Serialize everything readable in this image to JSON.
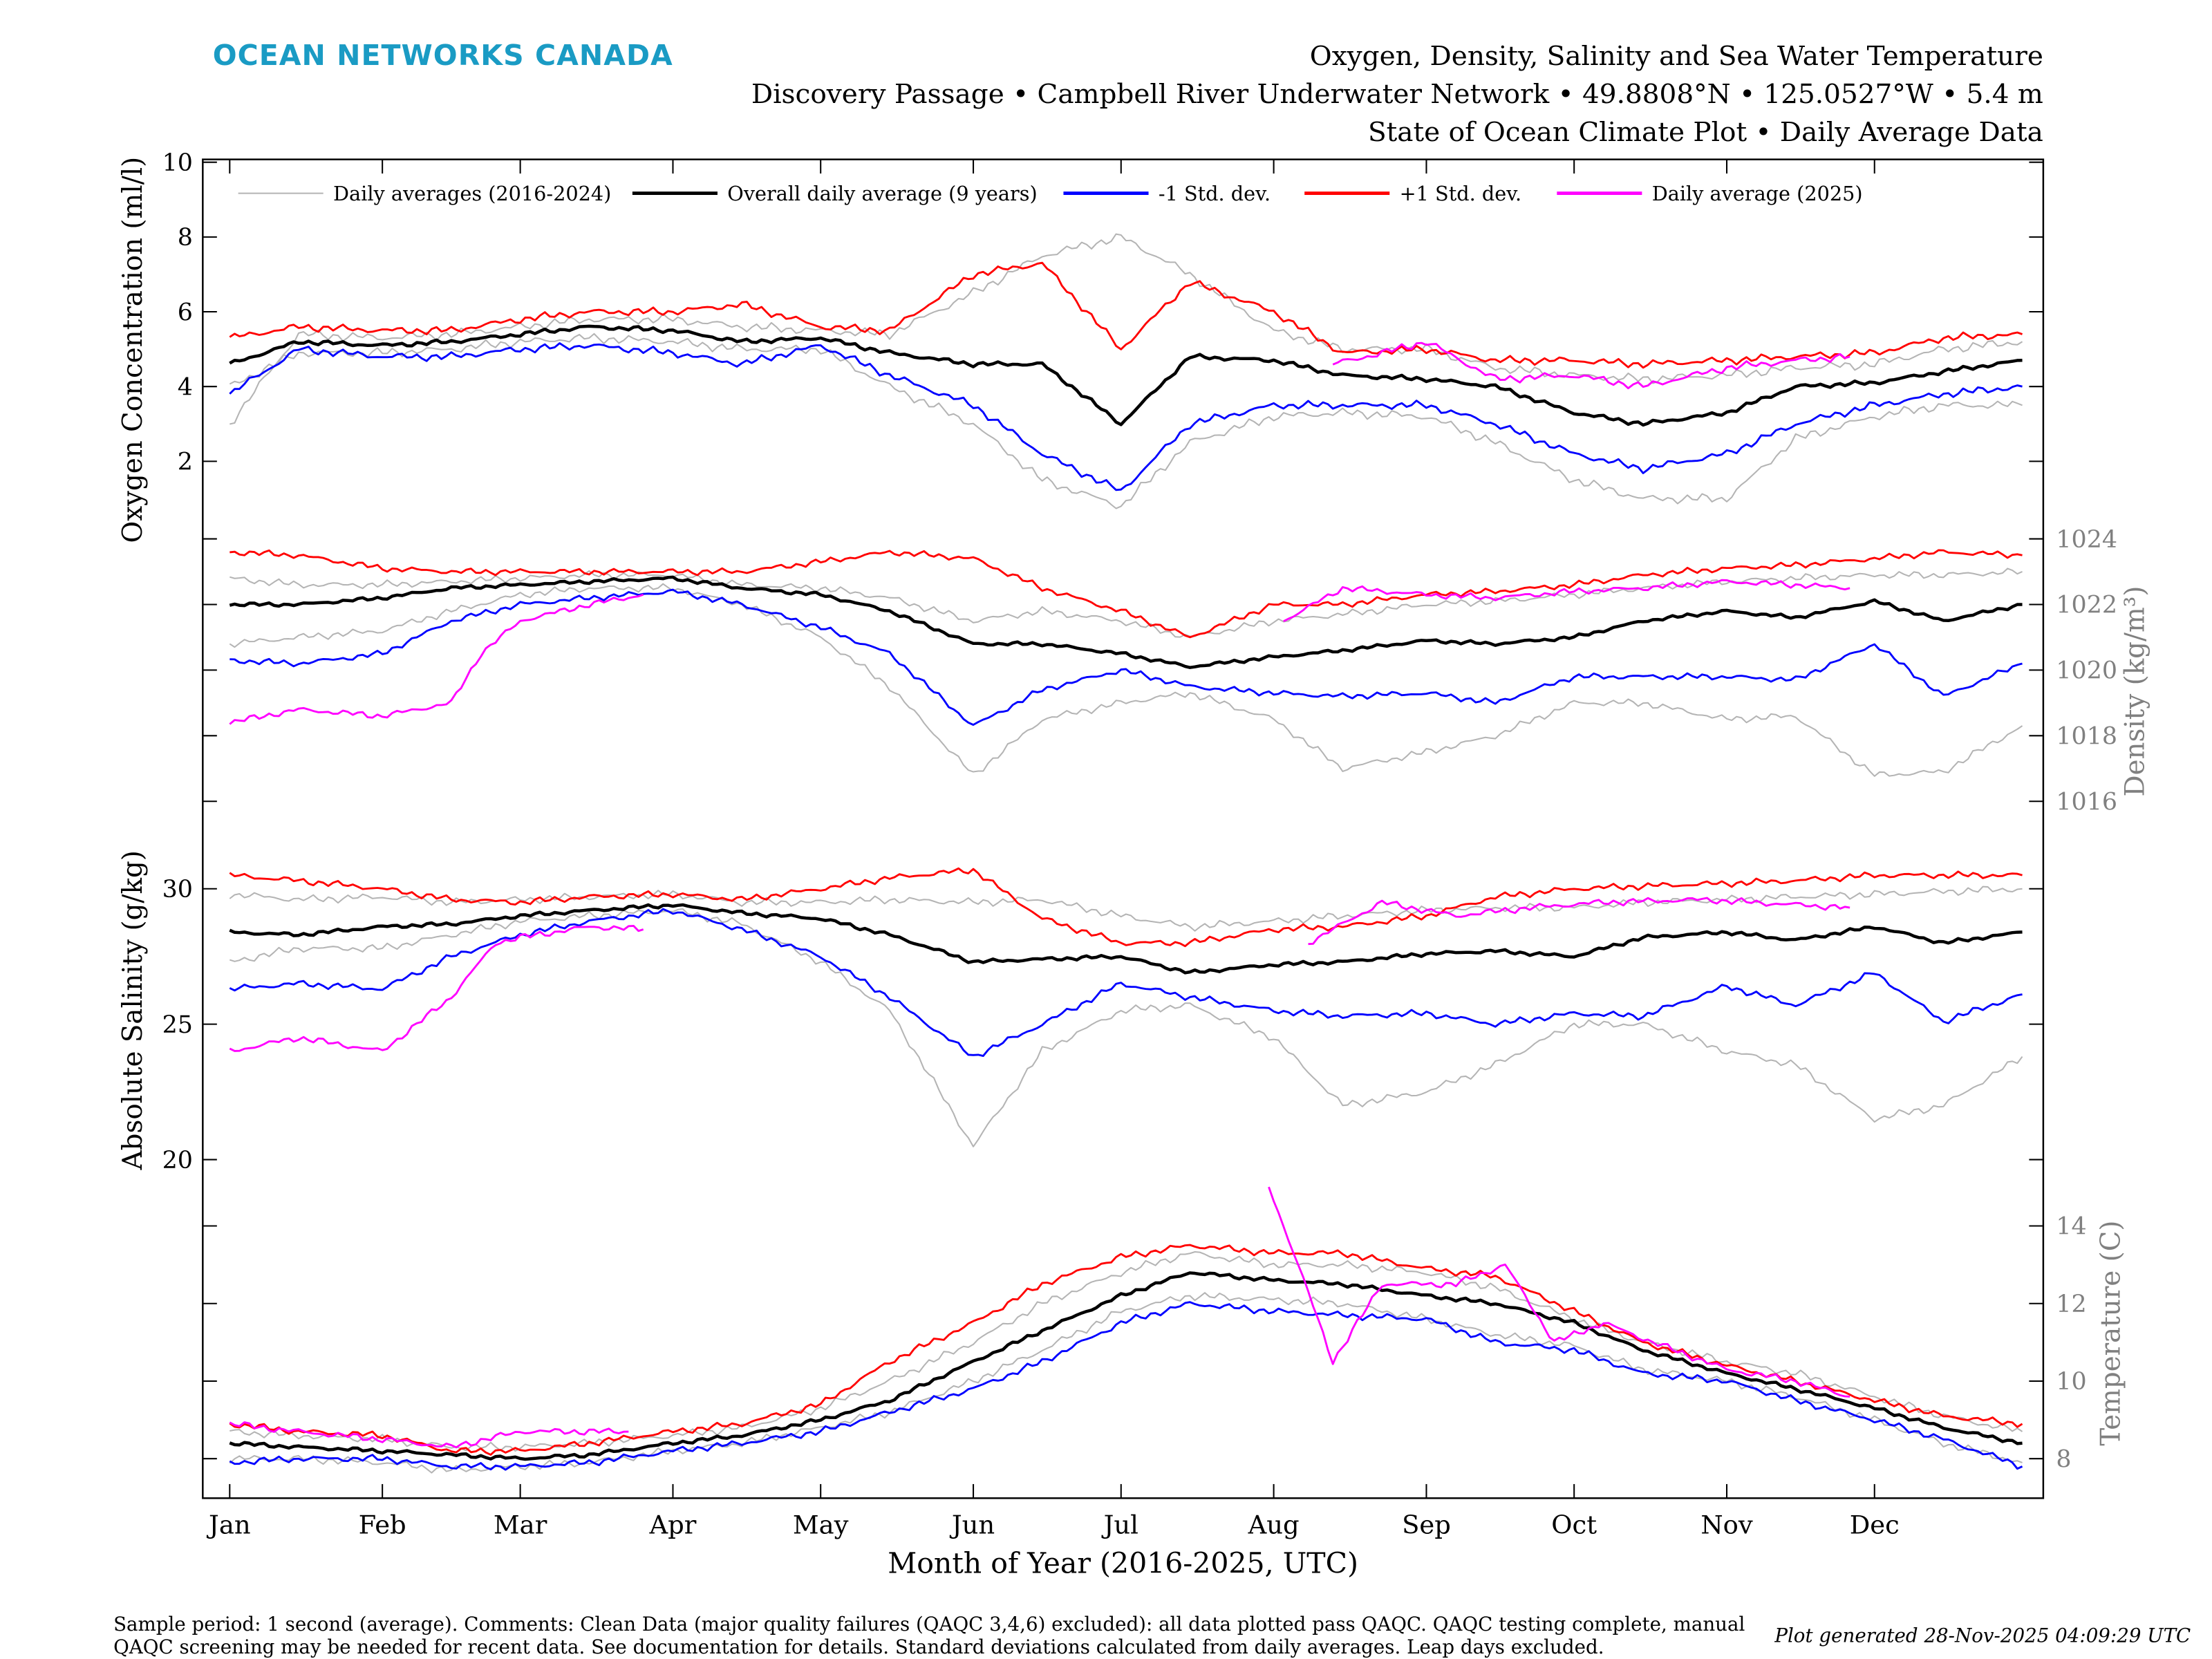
{
  "header": {
    "logo": "OCEAN NETWORKS CANADA",
    "title": "Oxygen, Density, Salinity and Sea Water Temperature",
    "subtitle": "Discovery Passage • Campbell River Underwater Network • 49.8808°N • 125.0527°W • 5.4 m",
    "subtitle2": "State of Ocean Climate Plot • Daily Average Data"
  },
  "footer": {
    "comment_line1": "Sample period: 1 second (average). Comments: Clean Data (major quality failures (QAQC 3,4,6) excluded): all data plotted pass QAQC. QAQC testing complete, manual",
    "comment_line2": "QAQC screening may be needed for recent data. See documentation for details. Standard deviations calculated from daily averages. Leap days excluded.",
    "generated": "Plot generated 28-Nov-2025 04:09:29 UTC"
  },
  "colors": {
    "logo": "#1a9bc4",
    "gray": "#b4b4b4",
    "mean": "#000000",
    "minus": "#0000ff",
    "plus": "#ff0000",
    "current": "#ff00ff",
    "axis2": "#808080"
  },
  "chart_data": {
    "type": "line",
    "xlabel": "Month of Year (2016-2025, UTC)",
    "x_ticks": [
      "Jan",
      "Feb",
      "Mar",
      "Apr",
      "May",
      "Jun",
      "Jul",
      "Aug",
      "Sep",
      "Oct",
      "Nov",
      "Dec"
    ],
    "x_tick_days": [
      1,
      32,
      60,
      91,
      121,
      152,
      182,
      213,
      244,
      274,
      305,
      335
    ],
    "xlim_days": [
      1,
      365
    ],
    "legend": {
      "placement": "top",
      "entries": [
        {
          "label": "Daily averages (2016-2024)",
          "key": "gray"
        },
        {
          "label": "Overall daily average (9 years)",
          "key": "mean"
        },
        {
          "label": "-1 Std. dev.",
          "key": "minus"
        },
        {
          "label": "+1 Std. dev.",
          "key": "plus"
        },
        {
          "label": "Daily average (2025)",
          "key": "current"
        }
      ]
    },
    "x_days": [
      1,
      15,
      32,
      46,
      60,
      74,
      91,
      105,
      121,
      135,
      152,
      166,
      182,
      196,
      213,
      227,
      244,
      258,
      274,
      288,
      305,
      319,
      335,
      349,
      365
    ],
    "panels": [
      {
        "name": "oxygen",
        "ylabel": "Oxygen Concentration (ml/l)",
        "axis_side": "left",
        "ylim": [
          0,
          10
        ],
        "y_ticks": [
          2,
          4,
          6,
          8,
          10
        ],
        "mean": [
          4.6,
          5.2,
          5.1,
          5.2,
          5.4,
          5.6,
          5.5,
          5.2,
          5.3,
          4.9,
          4.6,
          4.6,
          3.0,
          4.8,
          4.7,
          4.3,
          4.2,
          4.0,
          3.3,
          3.0,
          3.3,
          4.0,
          4.1,
          4.4,
          4.7
        ],
        "plus": [
          5.3,
          5.6,
          5.5,
          5.5,
          5.8,
          6.0,
          6.0,
          6.2,
          5.6,
          5.5,
          7.0,
          7.3,
          5.0,
          6.8,
          6.0,
          4.9,
          5.0,
          4.7,
          4.7,
          4.6,
          4.7,
          4.8,
          4.9,
          5.3,
          5.4
        ],
        "minus": [
          3.8,
          5.0,
          4.8,
          4.8,
          5.0,
          5.1,
          4.9,
          4.6,
          5.1,
          4.3,
          3.5,
          2.2,
          1.2,
          3.0,
          3.5,
          3.5,
          3.5,
          3.0,
          2.2,
          1.8,
          2.2,
          3.0,
          3.5,
          3.8,
          4.0
        ],
        "gray": [
          [
            3.0,
            5.4,
            5.3,
            5.4,
            5.6,
            5.8,
            5.8,
            5.6,
            5.5,
            5.4,
            6.5,
            7.5,
            8.0,
            7.0,
            5.5,
            5.0,
            5.0,
            4.5,
            4.3,
            4.2,
            4.3,
            4.5,
            4.6,
            5.0,
            5.2
          ],
          [
            4.0,
            4.9,
            4.9,
            5.0,
            5.2,
            5.3,
            5.2,
            5.0,
            5.0,
            4.0,
            3.0,
            1.5,
            0.8,
            2.5,
            3.2,
            3.3,
            3.2,
            2.5,
            1.5,
            1.0,
            1.0,
            2.6,
            3.2,
            3.5,
            3.5
          ]
        ],
        "current": {
          "x": [
            225,
            235,
            244,
            258,
            274,
            288,
            305,
            319,
            330
          ],
          "y": [
            4.6,
            4.9,
            5.2,
            4.2,
            4.3,
            4.0,
            4.5,
            4.7,
            4.8
          ]
        }
      },
      {
        "name": "density",
        "ylabel": "Density (kg/m³)",
        "axis_side": "right",
        "ylim": [
          1015.4,
          1024.4
        ],
        "y_ticks": [
          1016,
          1018,
          1020,
          1022,
          1024
        ],
        "mean": [
          1022.0,
          1022.0,
          1022.2,
          1022.5,
          1022.6,
          1022.7,
          1022.8,
          1022.5,
          1022.3,
          1021.8,
          1020.8,
          1020.8,
          1020.5,
          1020.1,
          1020.4,
          1020.6,
          1020.9,
          1020.8,
          1021.0,
          1021.5,
          1021.8,
          1021.6,
          1022.1,
          1021.5,
          1022.0
        ],
        "plus": [
          1023.6,
          1023.5,
          1023.1,
          1023.0,
          1023.0,
          1023.0,
          1023.0,
          1023.0,
          1023.3,
          1023.6,
          1023.4,
          1022.5,
          1021.8,
          1021.0,
          1022.0,
          1022.0,
          1022.3,
          1022.4,
          1022.6,
          1022.9,
          1023.1,
          1023.2,
          1023.4,
          1023.6,
          1023.5
        ],
        "minus": [
          1020.3,
          1020.2,
          1020.5,
          1021.5,
          1022.0,
          1022.2,
          1022.4,
          1022.0,
          1021.3,
          1020.5,
          1018.3,
          1019.4,
          1020.0,
          1019.5,
          1019.3,
          1019.2,
          1019.3,
          1019.0,
          1019.8,
          1019.8,
          1019.8,
          1019.7,
          1020.8,
          1019.2,
          1020.2
        ],
        "gray": [
          [
            1022.8,
            1022.6,
            1022.6,
            1022.7,
            1022.8,
            1022.9,
            1022.9,
            1022.6,
            1022.5,
            1022.2,
            1021.5,
            1021.8,
            1021.5,
            1021.0,
            1021.5,
            1021.7,
            1022.0,
            1022.1,
            1022.3,
            1022.5,
            1022.7,
            1022.8,
            1022.9,
            1022.9,
            1023.0
          ],
          [
            1020.8,
            1021.0,
            1021.2,
            1021.8,
            1022.3,
            1022.5,
            1022.5,
            1022.0,
            1021.0,
            1019.5,
            1016.8,
            1018.5,
            1019.0,
            1019.3,
            1018.5,
            1017.0,
            1017.5,
            1018.0,
            1019.0,
            1019.0,
            1018.5,
            1018.6,
            1016.8,
            1016.9,
            1018.3
          ]
        ],
        "current": {
          "x": [
            1,
            15,
            32,
            46,
            52,
            60,
            74,
            85,
            null,
            215,
            227,
            244,
            258,
            274,
            288,
            305,
            319,
            330
          ],
          "y": [
            1018.4,
            1018.8,
            1018.6,
            1019.0,
            1020.5,
            1021.5,
            1022.0,
            1022.3,
            null,
            1021.5,
            1022.5,
            1022.3,
            1022.2,
            1022.4,
            1022.5,
            1022.7,
            1022.6,
            1022.5
          ]
        }
      },
      {
        "name": "salinity",
        "ylabel": "Absolute Salinity (g/kg)",
        "axis_side": "left",
        "ylim": [
          19.5,
          31.2
        ],
        "y_ticks": [
          20,
          25,
          30
        ],
        "mean": [
          28.4,
          28.3,
          28.6,
          28.7,
          29.0,
          29.2,
          29.4,
          29.1,
          28.9,
          28.3,
          27.3,
          27.4,
          27.5,
          26.9,
          27.2,
          27.3,
          27.6,
          27.7,
          27.5,
          28.2,
          28.4,
          28.1,
          28.6,
          28.0,
          28.4
        ],
        "plus": [
          30.5,
          30.3,
          30.0,
          29.6,
          29.5,
          29.7,
          29.8,
          29.6,
          30.0,
          30.4,
          30.7,
          28.9,
          28.0,
          28.0,
          28.5,
          28.6,
          29.0,
          29.7,
          30.0,
          30.1,
          30.2,
          30.3,
          30.5,
          30.5,
          30.5
        ],
        "minus": [
          26.3,
          26.5,
          26.3,
          27.5,
          28.3,
          28.8,
          29.2,
          28.5,
          27.5,
          26.0,
          23.8,
          25.0,
          26.5,
          26.0,
          25.5,
          25.3,
          25.4,
          25.0,
          25.4,
          25.3,
          26.4,
          25.7,
          26.9,
          25.1,
          26.1
        ],
        "gray": [
          [
            29.8,
            29.6,
            29.7,
            29.5,
            29.6,
            29.7,
            29.8,
            29.5,
            29.5,
            29.6,
            29.5,
            29.6,
            29.0,
            28.6,
            28.8,
            29.0,
            29.2,
            29.3,
            29.3,
            29.5,
            29.6,
            29.7,
            29.8,
            29.9,
            30.0
          ],
          [
            27.3,
            27.8,
            27.8,
            28.3,
            28.8,
            29.0,
            29.2,
            28.7,
            27.3,
            25.5,
            20.5,
            24.0,
            25.5,
            25.7,
            24.5,
            22.0,
            22.5,
            23.5,
            25.0,
            25.0,
            24.0,
            23.5,
            21.5,
            22.0,
            23.8
          ]
        ],
        "current": {
          "x": [
            1,
            15,
            32,
            46,
            55,
            60,
            74,
            85,
            null,
            220,
            235,
            250,
            265,
            280,
            300,
            320,
            330
          ],
          "y": [
            24.0,
            24.5,
            24.0,
            26.0,
            28.0,
            28.2,
            28.6,
            28.5,
            null,
            28.0,
            29.5,
            29.0,
            29.3,
            29.5,
            29.6,
            29.4,
            29.3
          ]
        }
      },
      {
        "name": "temperature",
        "ylabel": "Temperature (C)",
        "axis_side": "right",
        "ylim": [
          7.3,
          15.7
        ],
        "y_ticks": [
          8,
          10,
          12,
          14
        ],
        "mean": [
          8.4,
          8.3,
          8.2,
          8.1,
          8.0,
          8.1,
          8.4,
          8.6,
          9.0,
          9.5,
          10.5,
          11.3,
          12.2,
          12.8,
          12.6,
          12.5,
          12.2,
          12.0,
          11.5,
          10.8,
          10.2,
          9.8,
          9.3,
          8.8,
          8.4
        ],
        "plus": [
          8.9,
          8.7,
          8.6,
          8.2,
          8.2,
          8.4,
          8.7,
          8.9,
          9.4,
          10.5,
          11.5,
          12.5,
          13.2,
          13.5,
          13.3,
          13.3,
          12.9,
          12.7,
          11.8,
          11.0,
          10.4,
          10.0,
          9.5,
          9.1,
          8.9
        ],
        "minus": [
          7.9,
          8.0,
          8.0,
          7.8,
          7.8,
          7.9,
          8.2,
          8.4,
          8.7,
          9.2,
          9.8,
          10.5,
          11.5,
          12.0,
          11.8,
          11.7,
          11.6,
          11.0,
          10.8,
          10.2,
          10.0,
          9.5,
          9.0,
          8.5,
          7.8
        ],
        "gray": [
          [
            8.7,
            8.6,
            8.5,
            8.3,
            8.3,
            8.4,
            8.6,
            8.8,
            9.3,
            10.0,
            11.0,
            12.0,
            12.8,
            13.3,
            13.0,
            13.0,
            12.8,
            12.4,
            11.6,
            11.0,
            10.5,
            10.2,
            9.6,
            9.1,
            8.7
          ],
          [
            8.0,
            8.0,
            7.9,
            7.7,
            7.8,
            7.9,
            8.2,
            8.4,
            8.8,
            9.2,
            10.0,
            10.8,
            11.8,
            12.2,
            12.1,
            12.0,
            11.6,
            11.2,
            10.9,
            10.3,
            10.0,
            9.6,
            9.0,
            8.4,
            7.9
          ]
        ],
        "current": {
          "x": [
            1,
            15,
            32,
            46,
            60,
            74,
            82,
            null,
            212,
            218,
            225,
            235,
            250,
            260,
            270,
            280,
            290,
            305,
            319,
            330
          ],
          "y": [
            8.9,
            8.7,
            8.5,
            8.3,
            8.7,
            8.7,
            8.7,
            null,
            15.0,
            13.0,
            10.5,
            12.5,
            12.5,
            13.0,
            11.0,
            11.5,
            11.0,
            10.3,
            10.0,
            9.6
          ]
        }
      }
    ]
  }
}
